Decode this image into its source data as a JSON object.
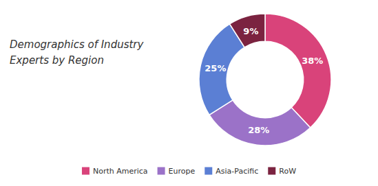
{
  "chart_data": {
    "type": "donut",
    "title": "Demographics of Industry\nExperts by Region",
    "categories": [
      "North America",
      "Europe",
      "Asia-Pacific",
      "RoW"
    ],
    "values": [
      38,
      28,
      25,
      9
    ],
    "value_labels": [
      "38%",
      "28%",
      "25%",
      "9%"
    ],
    "colors": [
      "#d9437a",
      "#9b72c8",
      "#5b7fd4",
      "#7b2340"
    ],
    "data_labels": true,
    "legend": "bottom"
  }
}
